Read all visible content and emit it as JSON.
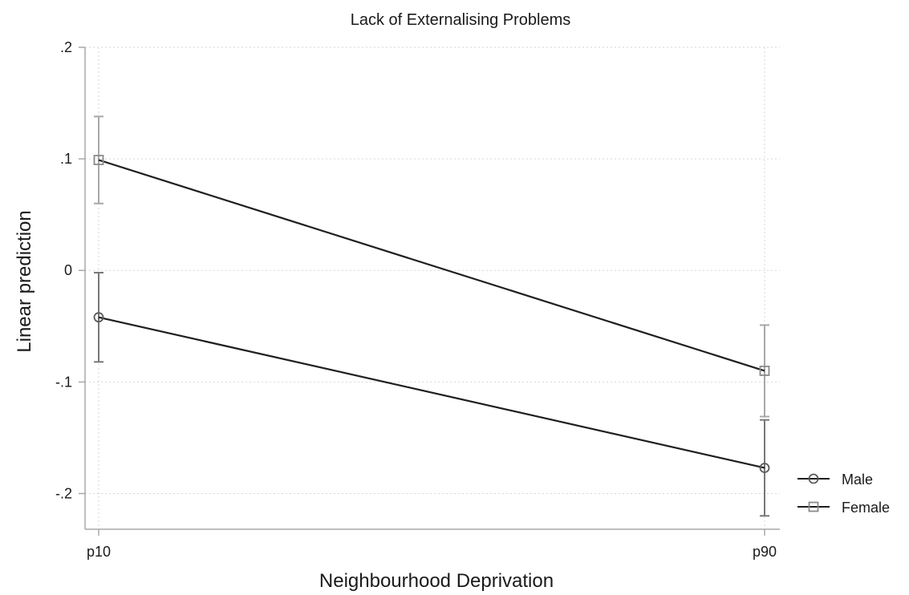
{
  "chart_data": {
    "type": "line",
    "title": "Lack of Externalising Problems",
    "xlabel": "Neighbourhood Deprivation",
    "ylabel": "Linear prediction",
    "categories": [
      "p10",
      "p90"
    ],
    "ylim": [
      -0.232,
      0.2
    ],
    "yticks": [
      0.2,
      0.1,
      0,
      -0.1,
      -0.2
    ],
    "ytick_labels": [
      ".2",
      ".1",
      "0",
      "-.1",
      "-.2"
    ],
    "grid": true,
    "legend_position": "right",
    "series": [
      {
        "name": "Male",
        "marker": "circle",
        "values": [
          -0.042,
          -0.177
        ],
        "ci_low": [
          -0.082,
          -0.22
        ],
        "ci_high": [
          -0.002,
          -0.134
        ],
        "line_color": "#1f1f1f",
        "marker_color": "#5a5a5a",
        "ci_color": "#777777"
      },
      {
        "name": "Female",
        "marker": "square",
        "values": [
          0.099,
          -0.09
        ],
        "ci_low": [
          0.06,
          -0.131
        ],
        "ci_high": [
          0.138,
          -0.049
        ],
        "line_color": "#1f1f1f",
        "marker_color": "#8a8a8a",
        "ci_color": "#a8a8a8"
      }
    ]
  }
}
